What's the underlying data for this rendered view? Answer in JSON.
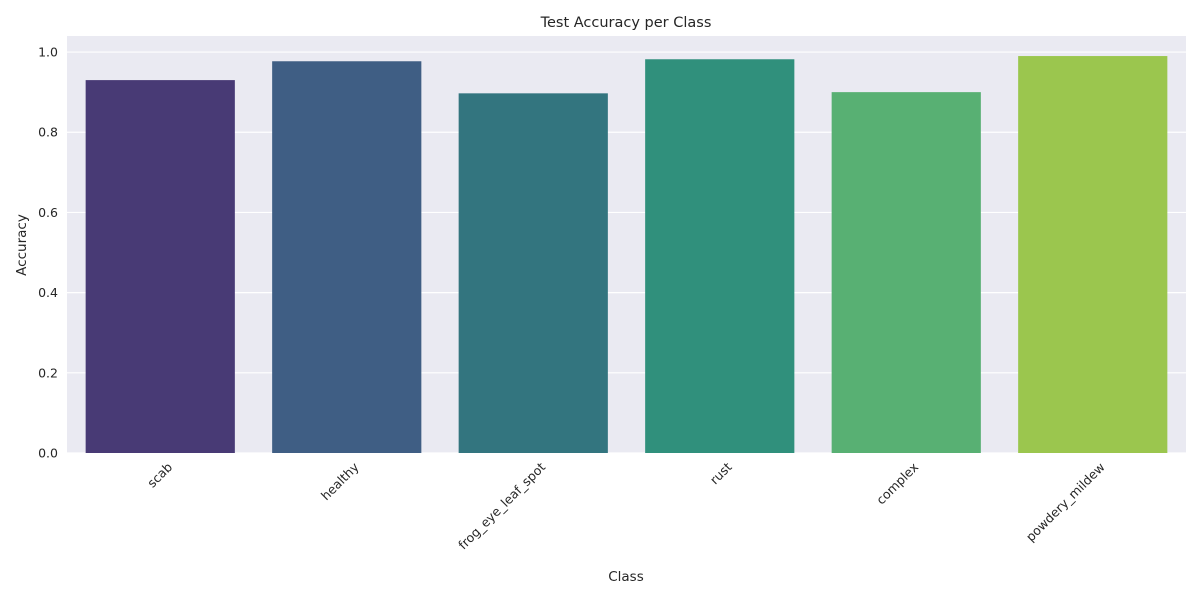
{
  "chart_data": {
    "type": "bar",
    "title": "Test Accuracy per Class",
    "xlabel": "Class",
    "ylabel": "Accuracy",
    "categories": [
      "scab",
      "healthy",
      "frog_eye_leaf_spot",
      "rust",
      "complex",
      "powdery_mildew"
    ],
    "values": [
      0.93,
      0.977,
      0.897,
      0.982,
      0.9,
      0.99
    ],
    "colors": [
      "#483a75",
      "#3f5e84",
      "#33757f",
      "#30907c",
      "#58b073",
      "#9bc64e"
    ],
    "ylim": [
      0,
      1.04
    ],
    "yticks": [
      0.0,
      0.2,
      0.4,
      0.6,
      0.8,
      1.0
    ],
    "ytick_labels": [
      "0.0",
      "0.2",
      "0.4",
      "0.6",
      "0.8",
      "1.0"
    ],
    "grid": true,
    "x_tick_rotation_deg": 45,
    "plot_background": "#eaeaf2",
    "grid_color": "#ffffff"
  }
}
